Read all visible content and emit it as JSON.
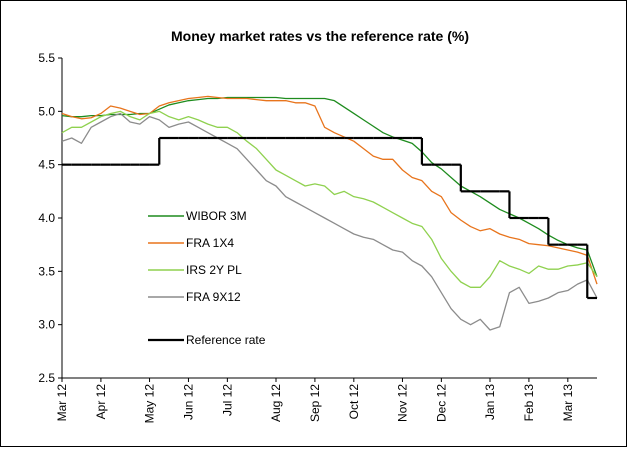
{
  "chart_data": {
    "type": "line",
    "title": "Money market rates vs the reference rate (%)",
    "categories": [
      "Mar 12",
      null,
      null,
      null,
      "Apr 12",
      null,
      null,
      null,
      null,
      "May 12",
      null,
      null,
      null,
      "Jun 12",
      null,
      null,
      null,
      "Jul 12",
      null,
      null,
      null,
      null,
      "Aug 12",
      null,
      null,
      null,
      "Sep 12",
      null,
      null,
      null,
      "Oct 12",
      null,
      null,
      null,
      null,
      "Nov 12",
      null,
      null,
      null,
      "Dec 12",
      null,
      null,
      null,
      null,
      "Jan 13",
      null,
      null,
      null,
      "Feb 13",
      null,
      null,
      null,
      "Mar 13",
      null,
      null,
      null
    ],
    "series": [
      {
        "name": "WIBOR 3M",
        "color": "#1e8c1e",
        "values": [
          4.96,
          4.95,
          4.95,
          4.96,
          4.96,
          4.97,
          4.97,
          4.97,
          4.98,
          4.98,
          5.02,
          5.06,
          5.08,
          5.1,
          5.11,
          5.12,
          5.12,
          5.13,
          5.13,
          5.13,
          5.13,
          5.13,
          5.13,
          5.12,
          5.12,
          5.12,
          5.12,
          5.12,
          5.1,
          5.04,
          4.98,
          4.92,
          4.86,
          4.8,
          4.76,
          4.73,
          4.7,
          4.62,
          4.52,
          4.46,
          4.38,
          4.3,
          4.25,
          4.2,
          4.14,
          4.08,
          4.04,
          4.0,
          3.95,
          3.9,
          3.84,
          3.79,
          3.75,
          3.72,
          3.7,
          3.45
        ]
      },
      {
        "name": "FRA 1X4",
        "color": "#e8741c",
        "values": [
          4.98,
          4.95,
          4.93,
          4.94,
          4.98,
          5.05,
          5.03,
          5.0,
          4.97,
          4.98,
          5.05,
          5.08,
          5.1,
          5.12,
          5.13,
          5.14,
          5.13,
          5.12,
          5.12,
          5.12,
          5.11,
          5.1,
          5.1,
          5.1,
          5.08,
          5.08,
          5.05,
          4.85,
          4.8,
          4.76,
          4.72,
          4.65,
          4.58,
          4.55,
          4.55,
          4.45,
          4.38,
          4.35,
          4.25,
          4.2,
          4.05,
          3.98,
          3.92,
          3.88,
          3.9,
          3.85,
          3.82,
          3.8,
          3.76,
          3.75,
          3.74,
          3.72,
          3.7,
          3.68,
          3.65,
          3.38
        ]
      },
      {
        "name": "IRS 2Y PL",
        "color": "#8fd14f",
        "values": [
          4.8,
          4.85,
          4.85,
          4.9,
          4.95,
          4.98,
          5.0,
          4.95,
          4.92,
          4.98,
          5.0,
          4.95,
          4.92,
          4.95,
          4.92,
          4.88,
          4.85,
          4.85,
          4.8,
          4.72,
          4.65,
          4.55,
          4.45,
          4.4,
          4.35,
          4.3,
          4.32,
          4.3,
          4.22,
          4.25,
          4.2,
          4.18,
          4.15,
          4.1,
          4.05,
          4.0,
          3.95,
          3.92,
          3.8,
          3.62,
          3.5,
          3.4,
          3.35,
          3.35,
          3.45,
          3.6,
          3.55,
          3.52,
          3.48,
          3.55,
          3.52,
          3.52,
          3.55,
          3.56,
          3.58,
          3.45
        ]
      },
      {
        "name": "FRA 9X12",
        "color": "#8c8c8c",
        "values": [
          4.72,
          4.75,
          4.7,
          4.85,
          4.9,
          4.95,
          4.98,
          4.9,
          4.88,
          4.95,
          4.92,
          4.85,
          4.88,
          4.9,
          4.85,
          4.8,
          4.75,
          4.7,
          4.65,
          4.55,
          4.45,
          4.35,
          4.3,
          4.2,
          4.15,
          4.1,
          4.05,
          4.0,
          3.95,
          3.9,
          3.85,
          3.82,
          3.8,
          3.75,
          3.7,
          3.68,
          3.6,
          3.55,
          3.45,
          3.3,
          3.15,
          3.05,
          3.0,
          3.05,
          2.95,
          2.98,
          3.3,
          3.35,
          3.2,
          3.22,
          3.25,
          3.3,
          3.32,
          3.38,
          3.42,
          3.25
        ]
      },
      {
        "name": "Reference rate",
        "color": "#000000",
        "drawstyle": "steps",
        "values": [
          4.5,
          4.5,
          4.5,
          4.5,
          4.5,
          4.5,
          4.5,
          4.5,
          4.5,
          4.5,
          4.75,
          4.75,
          4.75,
          4.75,
          4.75,
          4.75,
          4.75,
          4.75,
          4.75,
          4.75,
          4.75,
          4.75,
          4.75,
          4.75,
          4.75,
          4.75,
          4.75,
          4.75,
          4.75,
          4.75,
          4.75,
          4.75,
          4.75,
          4.75,
          4.75,
          4.75,
          4.75,
          4.5,
          4.5,
          4.5,
          4.5,
          4.25,
          4.25,
          4.25,
          4.25,
          4.25,
          4.0,
          4.0,
          4.0,
          4.0,
          3.75,
          3.75,
          3.75,
          3.75,
          3.25,
          3.25
        ]
      }
    ],
    "ylim": [
      2.5,
      5.5
    ],
    "yticks": [
      {
        "value": 2.5,
        "label": "2.5"
      },
      {
        "value": 3,
        "label": "3.0"
      },
      {
        "value": 3.5,
        "label": "3.5"
      },
      {
        "value": 4,
        "label": "4.0"
      },
      {
        "value": 4.5,
        "label": "4.5"
      },
      {
        "value": 5,
        "label": "5.0"
      },
      {
        "value": 5.5,
        "label": "5.5"
      }
    ],
    "grid": false,
    "legend": "left"
  }
}
